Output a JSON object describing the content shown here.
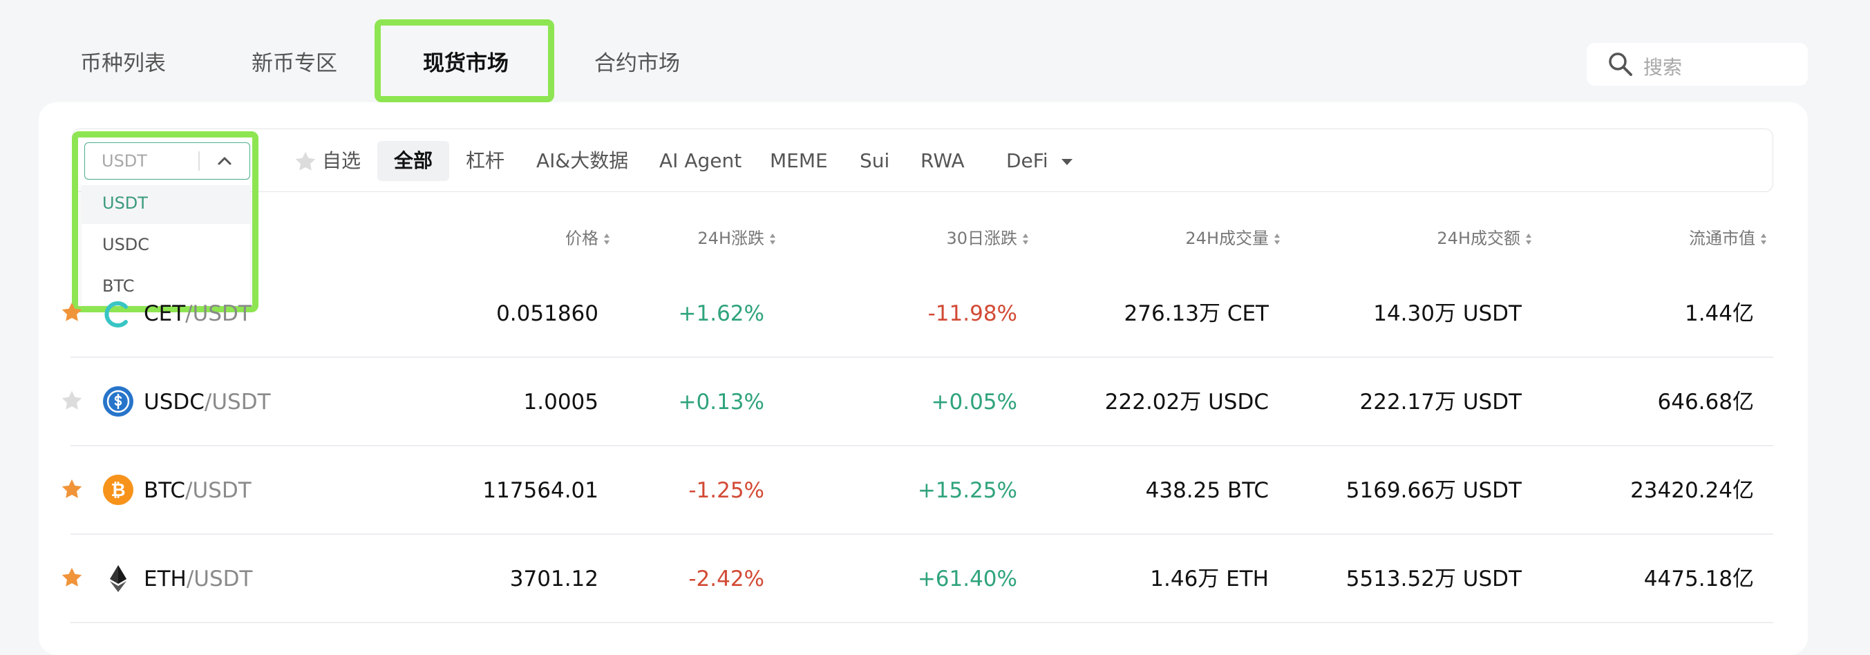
{
  "tabs": [
    {
      "label": "币种列表"
    },
    {
      "label": "新币专区"
    },
    {
      "label": "现货市场"
    },
    {
      "label": "合约市场"
    }
  ],
  "active_tab": "现货市场",
  "search": {
    "placeholder": "搜索"
  },
  "quote_select": {
    "value": "USDT",
    "options": [
      "USDT",
      "USDC",
      "BTC"
    ]
  },
  "filters": [
    "自选",
    "全部",
    "杠杆",
    "AI&大数据",
    "AI Agent",
    "MEME",
    "Sui",
    "RWA",
    "DeFi"
  ],
  "selected_filter": "全部",
  "columns": [
    "价格",
    "24H涨跌",
    "30日涨跌",
    "24H成交量",
    "24H成交额",
    "流通市值"
  ],
  "rows": [
    {
      "base": "CET",
      "quote": "/USDT",
      "price": "0.051860",
      "change24h": "+1.62%",
      "change30d": "-11.98%",
      "volume": "276.13万 CET",
      "turnover": "14.30万 USDT",
      "mcap": "1.44亿",
      "fav": true
    },
    {
      "base": "USDC",
      "quote": "/USDT",
      "price": "1.0005",
      "change24h": "+0.13%",
      "change30d": "+0.05%",
      "volume": "222.02万 USDC",
      "turnover": "222.17万 USDT",
      "mcap": "646.68亿",
      "fav": false
    },
    {
      "base": "BTC",
      "quote": "/USDT",
      "price": "117564.01",
      "change24h": "-1.25%",
      "change30d": "+15.25%",
      "volume": "438.25 BTC",
      "turnover": "5169.66万 USDT",
      "mcap": "23420.24亿",
      "fav": true
    },
    {
      "base": "ETH",
      "quote": "/USDT",
      "price": "3701.12",
      "change24h": "-2.42%",
      "change30d": "+61.40%",
      "volume": "1.46万 ETH",
      "turnover": "5513.52万 USDT",
      "mcap": "4475.18亿",
      "fav": true
    }
  ],
  "colors": {
    "up": "#2fa37d",
    "down": "#d24a35",
    "star_active": "#f0943a",
    "star_inactive": "#dcdcdc",
    "highlight": "#8ee552",
    "accent": "#4caf8b"
  }
}
